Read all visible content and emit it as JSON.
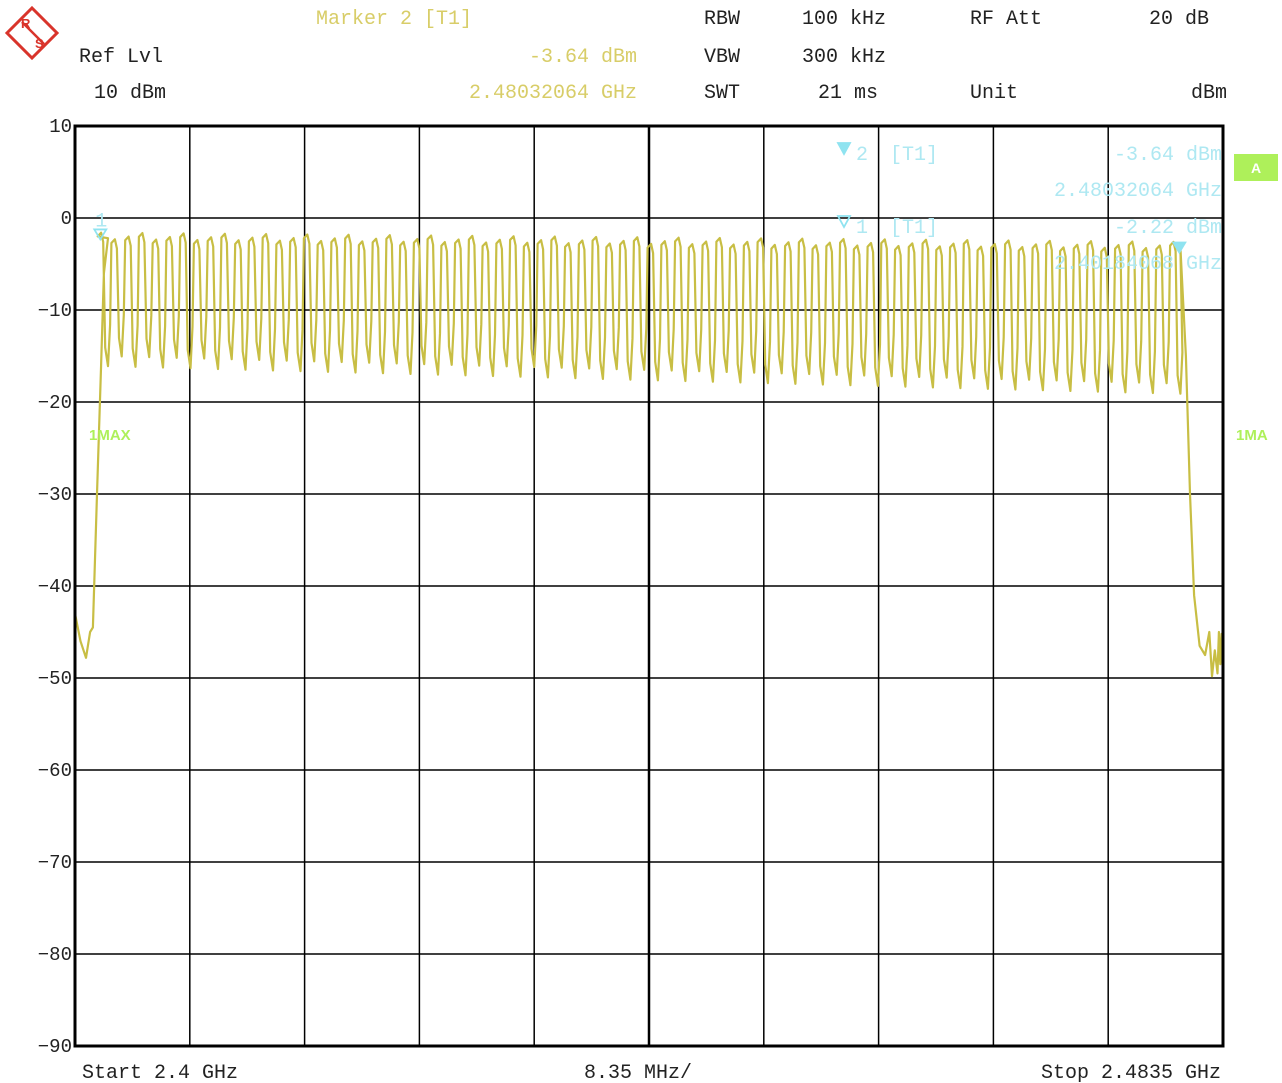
{
  "header": {
    "marker_title": "Marker 2 [T1]",
    "marker_level": "-3.64 dBm",
    "marker_freq": "2.48032064 GHz",
    "ref_lvl_label": "Ref Lvl",
    "ref_lvl_value": "10 dBm",
    "rbw_label": "RBW",
    "rbw_value": "100 kHz",
    "vbw_label": "VBW",
    "vbw_value": "300 kHz",
    "swt_label": "SWT",
    "swt_value": "21 ms",
    "rfatt_label": "RF Att",
    "rfatt_value": "20 dB",
    "unit_label": "Unit",
    "unit_value": "dBm"
  },
  "footer": {
    "start": "Start 2.4 GHz",
    "span_per_div": "8.35 MHz/",
    "stop": "Stop 2.4835 GHz"
  },
  "side_labels": {
    "trace_left": "1MAX",
    "trace_right": "1MA",
    "badge": "A"
  },
  "markers": [
    {
      "id": "2",
      "mode": "[T1]",
      "level": "-3.64 dBm",
      "freq": "2.48032064 GHz",
      "x": 2.48032064,
      "y": -3.64
    },
    {
      "id": "1",
      "mode": "[T1]",
      "level": "-2.22 dBm",
      "freq": "2.40184068 GHz",
      "x": 2.40184068,
      "y": -2.22
    }
  ],
  "colors": {
    "trace": "#c8be44",
    "marker": "#8fe3f0",
    "header_active": "#d8cd68",
    "label_green": "#aef05a",
    "grid": "#000000"
  },
  "chart_data": {
    "type": "line",
    "ylim": [
      -90,
      10
    ],
    "xlim": [
      2.4,
      2.4835
    ],
    "yticks": [
      10,
      0,
      -10,
      -20,
      -30,
      -40,
      -50,
      -60,
      -70,
      -80,
      -90
    ],
    "ytick_labels": [
      "10",
      "0",
      "-10",
      "-20",
      "-30",
      "-40",
      "-50",
      "-60",
      "-70",
      "-80",
      "-90"
    ],
    "grid": true,
    "x_divisions": 10,
    "series": [
      {
        "name": "1MAX",
        "hopping": {
          "channels": 79,
          "first_center": 2.402,
          "spacing": 0.001,
          "peak_start": -2.0,
          "peak_end": -3.0,
          "trough_start": -15.5,
          "trough_end": -18.5
        },
        "edges": [
          [
            2.4,
            -43.0
          ],
          [
            2.4004,
            -46.0
          ],
          [
            2.4008,
            -47.8
          ],
          [
            2.4011,
            -45.0
          ],
          [
            2.4013,
            -44.5
          ],
          [
            2.4016,
            -30.0
          ],
          [
            2.4019,
            -16.0
          ],
          [
            2.4021,
            -6.0
          ],
          [
            2.4024,
            -2.2
          ]
        ],
        "edges_end": [
          [
            2.4804,
            -3.2
          ],
          [
            2.4808,
            -15.0
          ],
          [
            2.4811,
            -30.0
          ],
          [
            2.4814,
            -41.0
          ],
          [
            2.4818,
            -46.5
          ],
          [
            2.4822,
            -47.5
          ],
          [
            2.4825,
            -45.0
          ],
          [
            2.4827,
            -49.8
          ],
          [
            2.4829,
            -47.0
          ],
          [
            2.4831,
            -49.5
          ],
          [
            2.4832,
            -45.0
          ],
          [
            2.4833,
            -48.5
          ],
          [
            2.4834,
            -45.2
          ],
          [
            2.4835,
            -48.0
          ]
        ]
      }
    ]
  }
}
